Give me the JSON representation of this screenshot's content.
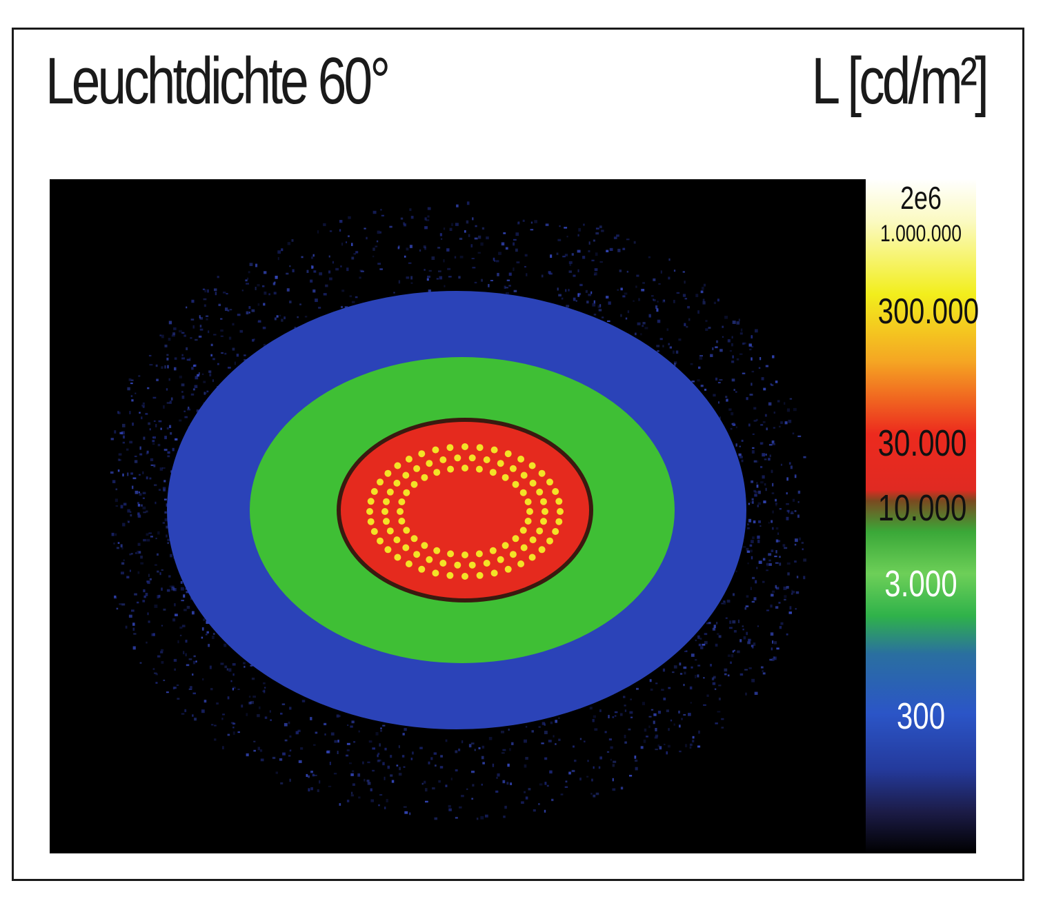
{
  "chart_data": {
    "type": "heatmap",
    "title": "Leuchtdichte 60°",
    "unit_label": "L [cd/m²]",
    "description_of_values": "false-colour luminance map with concentric elliptical zones",
    "zones": [
      {
        "name": "outer halo",
        "color": "#2b43b8",
        "level": 300
      },
      {
        "name": "middle ring",
        "color": "#3fbf35",
        "level": 3000
      },
      {
        "name": "core",
        "color": "#e52a1e",
        "level": 30000
      },
      {
        "name": "led dots",
        "color": "#f3e327",
        "level": 300000
      }
    ],
    "colorbar": {
      "scale": "log",
      "max_label": "2e6",
      "ticks": [
        {
          "label": "2e6",
          "value": 2000000,
          "text_color": "#111111"
        },
        {
          "label": "1.000.000",
          "value": 1000000,
          "text_color": "#111111"
        },
        {
          "label": "300.000",
          "value": 300000,
          "text_color": "#111111"
        },
        {
          "label": "30.000",
          "value": 30000,
          "text_color": "#111111"
        },
        {
          "label": "10.000",
          "value": 10000,
          "text_color": "#111111"
        },
        {
          "label": "3.000",
          "value": 3000,
          "text_color": "#ffffff"
        },
        {
          "label": "300",
          "value": 300,
          "text_color": "#ffffff"
        }
      ],
      "stops": [
        {
          "value": 2000000,
          "color": "#ffffff"
        },
        {
          "value": 1000000,
          "color": "#fbfac2"
        },
        {
          "value": 300000,
          "color": "#f2ee1c"
        },
        {
          "value": 100000,
          "color": "#f5a623"
        },
        {
          "value": 30000,
          "color": "#ec2a1e"
        },
        {
          "value": 12000,
          "color": "#e02a22"
        },
        {
          "value": 10000,
          "color": "#7a4a20"
        },
        {
          "value": 6000,
          "color": "#3aa838"
        },
        {
          "value": 3000,
          "color": "#6dcf58"
        },
        {
          "value": 1500,
          "color": "#2fb24a"
        },
        {
          "value": 800,
          "color": "#2a6fa0"
        },
        {
          "value": 300,
          "color": "#2b55c7"
        },
        {
          "value": 120,
          "color": "#243a9c"
        },
        {
          "value": 60,
          "color": "#1c1c48"
        },
        {
          "value": 30,
          "color": "#000000"
        }
      ]
    }
  }
}
